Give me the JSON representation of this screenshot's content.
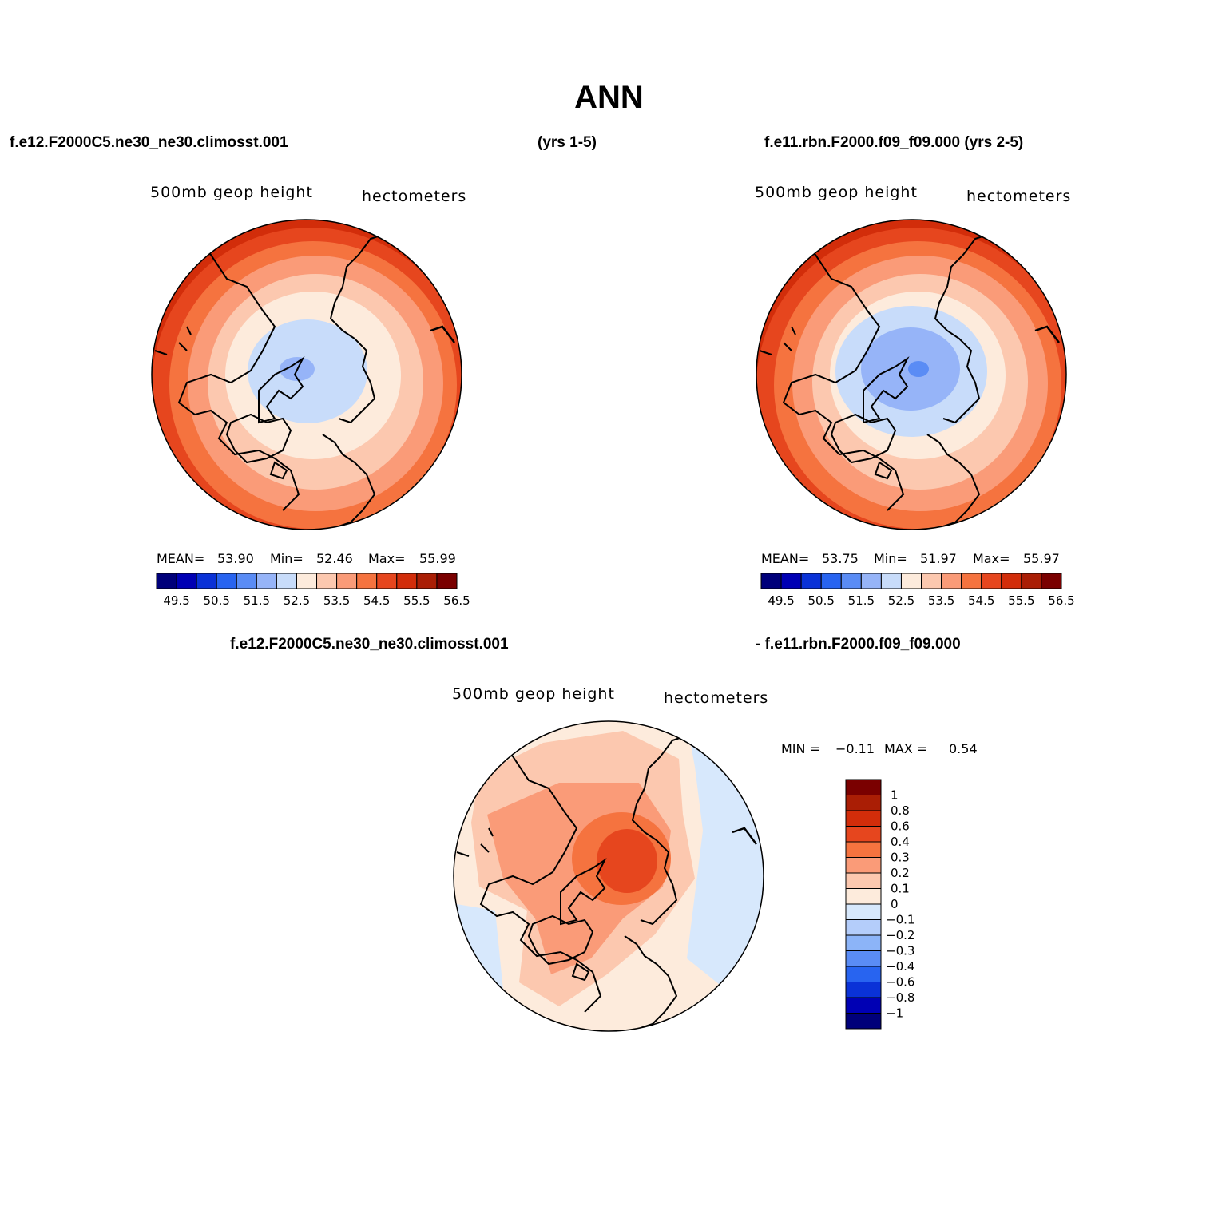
{
  "title": "ANN",
  "header": {
    "case1": "f.e12.F2000C5.ne30_ne30.climosst.001",
    "case1_years": "(yrs 1-5)",
    "case2": "f.e11.rbn.F2000.f09_f09.000 (yrs 2-5)"
  },
  "panels": [
    {
      "variable": "500mb geop height",
      "units": "hectometers",
      "stats": {
        "mean_label": "MEAN=",
        "mean": "53.90",
        "min_label": "Min=",
        "min": "52.46",
        "max_label": "Max=",
        "max": "55.99"
      }
    },
    {
      "variable": "500mb geop height",
      "units": "hectometers",
      "stats": {
        "mean_label": "MEAN=",
        "mean": "53.75",
        "min_label": "Min=",
        "min": "51.97",
        "max_label": "Max=",
        "max": "55.97"
      }
    }
  ],
  "abs_colorbar": {
    "colors": [
      "#00007a",
      "#0000b4",
      "#0a32d7",
      "#2864f0",
      "#5a8cf5",
      "#96b4f8",
      "#c8dcfa",
      "#fdebdc",
      "#fcc8af",
      "#fa9b78",
      "#f5733f",
      "#e6461e",
      "#d22d0a",
      "#aa1e05",
      "#7a0000"
    ],
    "labels": [
      "49.5",
      "50.5",
      "51.5",
      "52.5",
      "53.5",
      "54.5",
      "55.5",
      "56.5"
    ]
  },
  "diff": {
    "title_left": "f.e12.F2000C5.ne30_ne30.climosst.001",
    "title_right": "- f.e11.rbn.F2000.f09_f09.000",
    "variable": "500mb geop height",
    "units": "hectometers",
    "min_label": "MIN =",
    "min": "−0.11",
    "max_label": "MAX =",
    "max": "0.54",
    "colorbar": {
      "colors": [
        "#7a0000",
        "#aa1e05",
        "#d22d0a",
        "#e6461e",
        "#f5733f",
        "#fa9b78",
        "#fcc8af",
        "#fdebdc",
        "#d7e8fc",
        "#b4cdfa",
        "#8cb4f8",
        "#5a8cf5",
        "#2864f0",
        "#0a32d7",
        "#0000b4",
        "#00007a"
      ],
      "labels": [
        "1",
        "0.8",
        "0.6",
        "0.4",
        "0.3",
        "0.2",
        "0.1",
        "0",
        "−0.1",
        "−0.2",
        "−0.3",
        "−0.4",
        "−0.6",
        "−0.8",
        "−1"
      ]
    }
  }
}
